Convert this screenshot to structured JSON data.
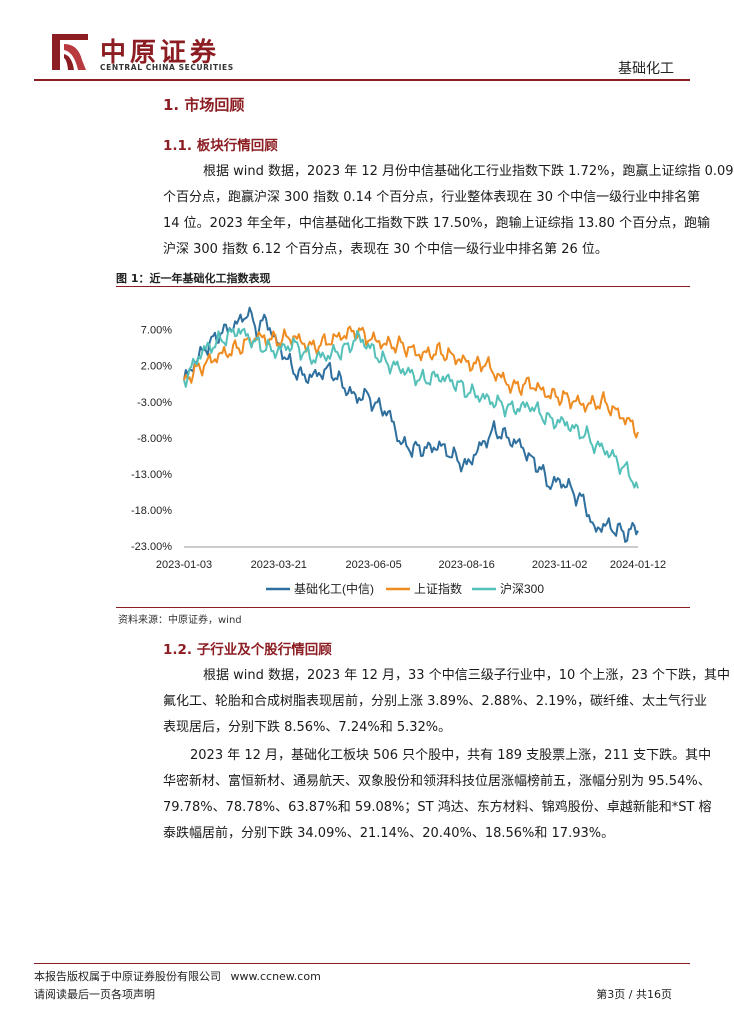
{
  "header": {
    "logo_cn": "中原证券",
    "logo_en": "CENTRAL CHINA SECURITIES",
    "section": "基础化工",
    "brand_color": "#8c1d22"
  },
  "sections": {
    "s1_title": "1. 市场回顾",
    "s11_title": "1.1. 板块行情回顾",
    "s11_lines": [
      "根据 wind 数据，2023 年 12 月份中信基础化工行业指数下跌 1.72%，跑赢上证综指 0.09",
      "个百分点，跑赢沪深 300 指数 0.14 个百分点，行业整体表现在 30 个中信一级行业中排名第",
      "14 位。2023 年全年，中信基础化工指数下跌 17.50%，跑输上证综指 13.80 个百分点，跑输",
      "沪深 300 指数 6.12 个百分点，表现在 30 个中信一级行业中排名第 26 位。"
    ],
    "s12_title": "1.2. 子行业及个股行情回顾",
    "s12_p1_lines": [
      "根据 wind 数据，2023 年 12 月，33 个中信三级子行业中，10 个上涨，23 个下跌，其中",
      "氟化工、轮胎和合成树脂表现居前，分别上涨 3.89%、2.88%、2.19%，碳纤维、太土气行业",
      "表现居后，分别下跌 8.56%、7.24%和 5.32%。"
    ],
    "s12_p2_lines": [
      "2023 年 12 月，基础化工板块 506 只个股中，共有 189 支股票上涨，211 支下跌。其中",
      "华密新材、富恒新材、通易航天、双象股份和领湃科技位居涨幅榜前五，涨幅分别为  95.54%、",
      "79.78%、78.78%、63.87%和 59.08%；ST 鸿达、东方材料、锦鸡股份、卓越新能和*ST 榕",
      "泰跌幅居前，分别下跌 34.09%、21.14%、20.40%、18.56%和 17.93%。"
    ]
  },
  "figure": {
    "title": "图 1：近一年基础化工指数表现",
    "source": "资料来源：中原证券，wind"
  },
  "chart_data": {
    "type": "line",
    "title": "近一年基础化工指数表现",
    "y_ticks": [
      "7.00%",
      "2.00%",
      "-3.00%",
      "-8.00%",
      "-13.00%",
      "-18.00%",
      "-23.00%"
    ],
    "x_ticks": [
      "2023-01-03",
      "2023-03-21",
      "2023-06-05",
      "2023-08-16",
      "2023-11-02",
      "2024-01-12"
    ],
    "ylim": [
      -23,
      10
    ],
    "n_points": 250,
    "series": [
      {
        "name": "基础化工(中信)",
        "color": "#2e6f9e",
        "anchors": [
          [
            0,
            0
          ],
          [
            10,
            4
          ],
          [
            20,
            6.5
          ],
          [
            30,
            8
          ],
          [
            35,
            9.5
          ],
          [
            40,
            7
          ],
          [
            45,
            8.5
          ],
          [
            50,
            5.5
          ],
          [
            55,
            3.5
          ],
          [
            60,
            1.5
          ],
          [
            65,
            0.5
          ],
          [
            70,
            0.5
          ],
          [
            80,
            1.5
          ],
          [
            90,
            -1.5
          ],
          [
            95,
            -2.5
          ],
          [
            100,
            -2
          ],
          [
            105,
            -3.5
          ],
          [
            110,
            -4
          ],
          [
            115,
            -6
          ],
          [
            118,
            -8.5
          ],
          [
            121,
            -9
          ],
          [
            125,
            -9.5
          ],
          [
            130,
            -9.5
          ],
          [
            135,
            -9.5
          ],
          [
            140,
            -9
          ],
          [
            150,
            -11
          ],
          [
            155,
            -12
          ],
          [
            160,
            -10
          ],
          [
            170,
            -7
          ],
          [
            175,
            -7.5
          ],
          [
            180,
            -8.5
          ],
          [
            185,
            -9
          ],
          [
            190,
            -11
          ],
          [
            195,
            -12
          ],
          [
            200,
            -14.5
          ],
          [
            205,
            -14
          ],
          [
            210,
            -14.5
          ],
          [
            215,
            -16
          ],
          [
            220,
            -17
          ],
          [
            225,
            -21
          ],
          [
            230,
            -20
          ],
          [
            235,
            -20.5
          ],
          [
            240,
            -21
          ],
          [
            243,
            -21.5
          ],
          [
            246,
            -20.5
          ],
          [
            250,
            -21
          ]
        ]
      },
      {
        "name": "上证指数",
        "color": "#ee8b21",
        "anchors": [
          [
            0,
            0
          ],
          [
            10,
            2
          ],
          [
            20,
            3.5
          ],
          [
            30,
            4.5
          ],
          [
            40,
            6
          ],
          [
            50,
            5.5
          ],
          [
            60,
            6
          ],
          [
            70,
            4.5
          ],
          [
            80,
            5.5
          ],
          [
            90,
            6.5
          ],
          [
            95,
            6.8
          ],
          [
            100,
            6
          ],
          [
            110,
            5
          ],
          [
            120,
            4.8
          ],
          [
            130,
            3.5
          ],
          [
            140,
            4
          ],
          [
            150,
            3
          ],
          [
            160,
            2
          ],
          [
            165,
            2.5
          ],
          [
            170,
            1
          ],
          [
            175,
            0.2
          ],
          [
            180,
            -1
          ],
          [
            190,
            -0.5
          ],
          [
            200,
            -2
          ],
          [
            210,
            -2.5
          ],
          [
            215,
            -3
          ],
          [
            220,
            -3.5
          ],
          [
            230,
            -3
          ],
          [
            235,
            -4
          ],
          [
            240,
            -5
          ],
          [
            245,
            -6
          ],
          [
            250,
            -7.5
          ]
        ]
      },
      {
        "name": "沪深300",
        "color": "#55c0b9",
        "anchors": [
          [
            0,
            0
          ],
          [
            10,
            4
          ],
          [
            20,
            5.5
          ],
          [
            30,
            7
          ],
          [
            40,
            5
          ],
          [
            50,
            4
          ],
          [
            60,
            5
          ],
          [
            70,
            3
          ],
          [
            80,
            3.5
          ],
          [
            90,
            4.5
          ],
          [
            95,
            6
          ],
          [
            100,
            5
          ],
          [
            110,
            2.5
          ],
          [
            120,
            1.5
          ],
          [
            130,
            0
          ],
          [
            140,
            0.5
          ],
          [
            150,
            -0.5
          ],
          [
            155,
            -1.5
          ],
          [
            160,
            -2
          ],
          [
            170,
            -3
          ],
          [
            180,
            -4
          ],
          [
            190,
            -3.5
          ],
          [
            200,
            -5.5
          ],
          [
            210,
            -6
          ],
          [
            215,
            -7
          ],
          [
            220,
            -7.5
          ],
          [
            225,
            -9
          ],
          [
            230,
            -9.5
          ],
          [
            235,
            -10.5
          ],
          [
            240,
            -12
          ],
          [
            245,
            -13
          ],
          [
            248,
            -15
          ],
          [
            250,
            -15
          ]
        ]
      }
    ]
  },
  "footer": {
    "copyright": "本报告版权属于中原证券股份有限公司",
    "website": "www.ccnew.com",
    "disclaimer": "请阅读最后一页各项声明",
    "page_label": "第3页 / 共16页"
  }
}
